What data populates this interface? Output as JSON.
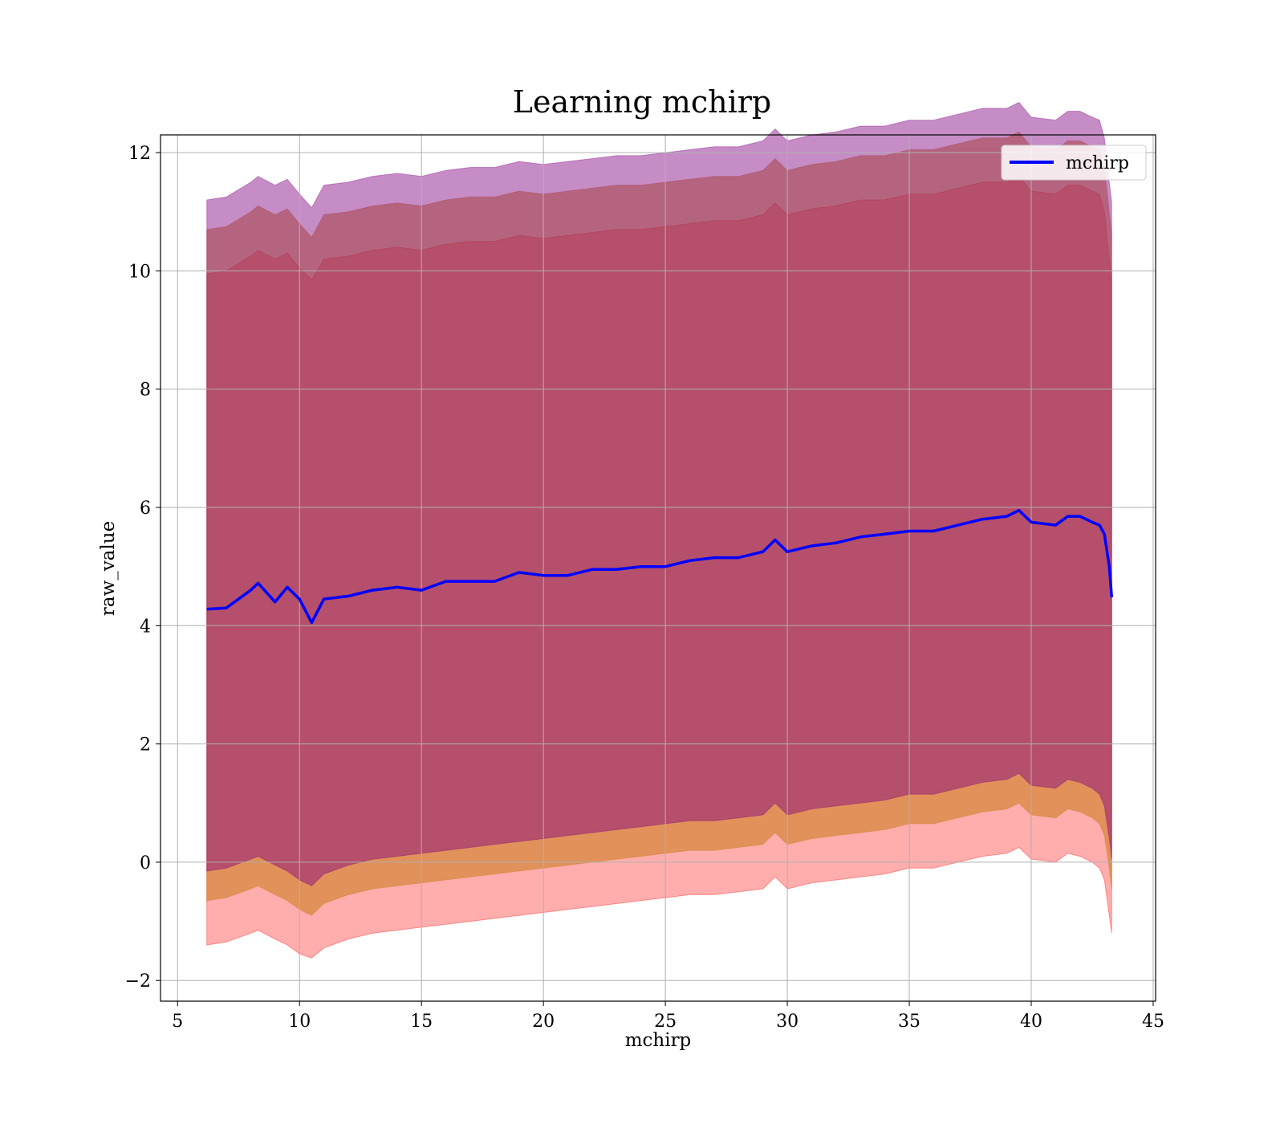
{
  "chart_data": {
    "type": "area",
    "title": "Learning mchirp",
    "xlabel": "mchirp",
    "ylabel": "raw_value",
    "xlim": [
      4.3,
      45.1
    ],
    "ylim": [
      -2.35,
      12.3
    ],
    "xticks": [
      5,
      10,
      15,
      20,
      25,
      30,
      35,
      40,
      45
    ],
    "yticks": [
      -2,
      0,
      2,
      4,
      6,
      8,
      10,
      12
    ],
    "xtick_labels": [
      "5",
      "10",
      "15",
      "20",
      "25",
      "30",
      "35",
      "40",
      "45"
    ],
    "ytick_labels": [
      "−2",
      "0",
      "2",
      "4",
      "6",
      "8",
      "10",
      "12"
    ],
    "grid": true,
    "legend": {
      "position": "top-right",
      "entries": [
        "mchirp"
      ]
    },
    "colors": {
      "mean_line": "#0000ff",
      "band_3sigma": "#ff0000",
      "band_2sigma": "#c87a14",
      "band_1sigma": "#800080",
      "grid": "#b0b0b0"
    },
    "x": [
      6.2,
      7,
      8,
      8.3,
      9,
      9.5,
      10,
      10.5,
      11,
      12,
      13,
      14,
      15,
      16,
      17,
      18,
      19,
      20,
      21,
      22,
      23,
      24,
      25,
      26,
      27,
      28,
      29,
      29.5,
      30,
      31,
      32,
      33,
      34,
      35,
      36,
      37,
      38,
      39,
      39.5,
      40,
      41,
      41.5,
      42,
      42.5,
      42.8,
      43,
      43.2,
      43.3
    ],
    "series": [
      {
        "name": "mchirp",
        "kind": "line",
        "values": [
          4.28,
          4.3,
          4.6,
          4.72,
          4.4,
          4.65,
          4.45,
          4.05,
          4.45,
          4.5,
          4.6,
          4.65,
          4.6,
          4.75,
          4.75,
          4.75,
          4.9,
          4.85,
          4.85,
          4.95,
          4.95,
          5.0,
          5.0,
          5.1,
          5.15,
          5.15,
          5.25,
          5.45,
          5.25,
          5.35,
          5.4,
          5.5,
          5.55,
          5.6,
          5.6,
          5.7,
          5.8,
          5.85,
          5.95,
          5.75,
          5.7,
          5.85,
          5.85,
          5.75,
          5.7,
          5.55,
          5.0,
          4.48
        ]
      },
      {
        "kind": "band",
        "lower": [
          -1.4,
          -1.35,
          -1.2,
          -1.15,
          -1.3,
          -1.4,
          -1.55,
          -1.62,
          -1.45,
          -1.3,
          -1.2,
          -1.15,
          -1.1,
          -1.05,
          -1.0,
          -0.95,
          -0.9,
          -0.85,
          -0.8,
          -0.75,
          -0.7,
          -0.65,
          -0.6,
          -0.55,
          -0.55,
          -0.5,
          -0.45,
          -0.25,
          -0.45,
          -0.35,
          -0.3,
          -0.25,
          -0.2,
          -0.1,
          -0.1,
          0.0,
          0.1,
          0.15,
          0.25,
          0.05,
          0.0,
          0.15,
          0.1,
          0.0,
          -0.1,
          -0.3,
          -0.9,
          -1.2
        ],
        "upper": [
          9.95,
          10.0,
          10.25,
          10.35,
          10.2,
          10.3,
          10.05,
          9.85,
          10.2,
          10.25,
          10.35,
          10.4,
          10.35,
          10.45,
          10.5,
          10.5,
          10.6,
          10.55,
          10.6,
          10.65,
          10.7,
          10.7,
          10.75,
          10.8,
          10.85,
          10.85,
          10.95,
          11.15,
          10.95,
          11.05,
          11.1,
          11.2,
          11.2,
          11.3,
          11.3,
          11.4,
          11.5,
          11.5,
          11.6,
          11.35,
          11.3,
          11.45,
          11.45,
          11.35,
          11.3,
          11.0,
          10.2,
          9.9
        ]
      },
      {
        "kind": "band",
        "lower": [
          -0.65,
          -0.6,
          -0.45,
          -0.4,
          -0.55,
          -0.65,
          -0.8,
          -0.9,
          -0.7,
          -0.55,
          -0.45,
          -0.4,
          -0.35,
          -0.3,
          -0.25,
          -0.2,
          -0.15,
          -0.1,
          -0.05,
          0.0,
          0.05,
          0.1,
          0.15,
          0.2,
          0.2,
          0.25,
          0.3,
          0.5,
          0.3,
          0.4,
          0.45,
          0.5,
          0.55,
          0.65,
          0.65,
          0.75,
          0.85,
          0.9,
          1.0,
          0.8,
          0.75,
          0.9,
          0.85,
          0.75,
          0.65,
          0.45,
          -0.1,
          -0.45
        ]
      },
      {
        "kind": "band",
        "lower": [
          -0.15,
          -0.1,
          0.05,
          0.1,
          -0.05,
          -0.15,
          -0.3,
          -0.4,
          -0.2,
          -0.05,
          0.05,
          0.1,
          0.15,
          0.2,
          0.25,
          0.3,
          0.35,
          0.4,
          0.45,
          0.5,
          0.55,
          0.6,
          0.65,
          0.7,
          0.7,
          0.75,
          0.8,
          1.0,
          0.8,
          0.9,
          0.95,
          1.0,
          1.05,
          1.15,
          1.15,
          1.25,
          1.35,
          1.4,
          1.5,
          1.3,
          1.25,
          1.4,
          1.35,
          1.25,
          1.15,
          0.95,
          0.4,
          0.05
        ]
      }
    ]
  }
}
